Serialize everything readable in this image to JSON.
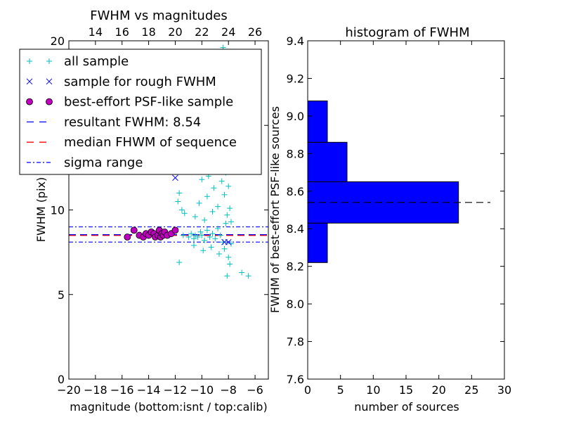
{
  "chart_data": [
    {
      "type": "scatter",
      "title": "FWHM vs magnitudes",
      "xlabel": "magnitude (bottom:isnt / top:calib)",
      "ylabel": "FWHM (pix)",
      "xlim": [
        -20,
        -5
      ],
      "ylim": [
        0,
        20
      ],
      "x_ticks": [
        "−20",
        "−18",
        "−16",
        "−14",
        "−12",
        "−10",
        "−8",
        "−6"
      ],
      "x_tick_values": [
        -20,
        -18,
        -16,
        -14,
        -12,
        -10,
        -8,
        -6
      ],
      "y_ticks": [
        "0",
        "5",
        "10",
        "15",
        "20"
      ],
      "y_tick_values": [
        0,
        5,
        10,
        15,
        20
      ],
      "top_xlim": [
        12,
        27
      ],
      "top_ticks": [
        "14",
        "16",
        "18",
        "20",
        "22",
        "24",
        "26"
      ],
      "top_tick_values": [
        14,
        16,
        18,
        20,
        22,
        24,
        26
      ],
      "legend": {
        "placement": "upper-left",
        "entries": [
          {
            "label": "all sample",
            "marker": "+",
            "color": "#00bfbf"
          },
          {
            "label": "sample for rough FWHM",
            "marker": "x",
            "color": "#0000ff"
          },
          {
            "label": "best-effort PSF-like sample",
            "marker": "o",
            "color": "#bf00bf"
          },
          {
            "label": "resultant FWHM: 8.54",
            "linestyle": "dashed",
            "color": "#0000ff"
          },
          {
            "label": "median FHWM of sequence",
            "linestyle": "dashed",
            "color": "#ff0000"
          },
          {
            "label": "sigma range",
            "linestyle": "dashdot",
            "color": "#0000ff"
          }
        ]
      },
      "lines": {
        "resultant_fwhm": 8.54,
        "median_fwhm": 8.5,
        "sigma_range": [
          8.1,
          9.0
        ]
      },
      "series": [
        {
          "name": "all sample",
          "marker": "+",
          "color": "#00bfbf",
          "points": [
            [
              -11.4,
              8.5
            ],
            [
              -11.0,
              8.4
            ],
            [
              -10.8,
              8.6
            ],
            [
              -10.6,
              8.3
            ],
            [
              -10.5,
              8.5
            ],
            [
              -10.3,
              8.4
            ],
            [
              -10.1,
              8.7
            ],
            [
              -10.0,
              8.5
            ],
            [
              -9.8,
              8.2
            ],
            [
              -9.6,
              8.8
            ],
            [
              -9.4,
              8.4
            ],
            [
              -9.2,
              8.6
            ],
            [
              -9.0,
              8.3
            ],
            [
              -8.8,
              8.9
            ],
            [
              -8.6,
              8.5
            ],
            [
              -8.4,
              8.1
            ],
            [
              -8.2,
              9.2
            ],
            [
              -11.8,
              10.5
            ],
            [
              -11.7,
              11.0
            ],
            [
              -11.5,
              10.0
            ],
            [
              -11.3,
              9.8
            ],
            [
              -11.0,
              12.5
            ],
            [
              -10.8,
              13.5
            ],
            [
              -10.5,
              9.6
            ],
            [
              -10.2,
              10.4
            ],
            [
              -10.0,
              11.8
            ],
            [
              -9.9,
              13.0
            ],
            [
              -9.8,
              9.4
            ],
            [
              -9.6,
              10.8
            ],
            [
              -9.5,
              12.0
            ],
            [
              -9.4,
              14.5
            ],
            [
              -9.2,
              9.9
            ],
            [
              -9.1,
              11.3
            ],
            [
              -9.0,
              16.0
            ],
            [
              -8.9,
              13.8
            ],
            [
              -8.8,
              10.2
            ],
            [
              -8.7,
              12.6
            ],
            [
              -8.6,
              17.5
            ],
            [
              -8.6,
              14.2
            ],
            [
              -8.5,
              11.7
            ],
            [
              -8.4,
              19.6
            ],
            [
              -8.4,
              15.5
            ],
            [
              -8.3,
              13.1
            ],
            [
              -8.3,
              10.9
            ],
            [
              -8.2,
              18.4
            ],
            [
              -8.2,
              12.2
            ],
            [
              -8.1,
              14.8
            ],
            [
              -8.1,
              9.7
            ],
            [
              -8.0,
              16.8
            ],
            [
              -8.0,
              11.4
            ],
            [
              -7.9,
              13.6
            ],
            [
              -7.9,
              10.1
            ],
            [
              -7.8,
              12.8
            ],
            [
              -7.8,
              9.3
            ],
            [
              -10.6,
              7.9
            ],
            [
              -9.9,
              7.6
            ],
            [
              -9.3,
              7.8
            ],
            [
              -8.7,
              7.4
            ],
            [
              -8.3,
              7.7
            ],
            [
              -8.0,
              7.2
            ],
            [
              -7.9,
              6.8
            ],
            [
              -8.1,
              6.1
            ],
            [
              -7.0,
              6.3
            ],
            [
              -6.5,
              6.1
            ],
            [
              -11.7,
              6.9
            ],
            [
              -12.4,
              8.5
            ],
            [
              -12.6,
              8.6
            ],
            [
              -7.8,
              8.0
            ]
          ]
        },
        {
          "name": "sample for rough FWHM",
          "marker": "x",
          "color": "#0000ff",
          "points": [
            [
              -12.0,
              11.9
            ],
            [
              -8.3,
              8.1
            ],
            [
              -8.0,
              8.1
            ]
          ]
        },
        {
          "name": "best-effort PSF-like sample",
          "marker": "o",
          "color": "#bf00bf",
          "points": [
            [
              -15.6,
              8.4
            ],
            [
              -15.1,
              8.8
            ],
            [
              -14.7,
              8.5
            ],
            [
              -14.4,
              8.4
            ],
            [
              -14.2,
              8.6
            ],
            [
              -14.0,
              8.5
            ],
            [
              -13.8,
              8.7
            ],
            [
              -13.6,
              8.6
            ],
            [
              -13.5,
              8.4
            ],
            [
              -13.3,
              8.5
            ],
            [
              -13.2,
              8.8
            ],
            [
              -13.1,
              8.4
            ],
            [
              -13.0,
              8.6
            ],
            [
              -12.9,
              8.5
            ],
            [
              -12.8,
              8.7
            ],
            [
              -12.6,
              8.5
            ],
            [
              -12.3,
              8.6
            ],
            [
              -12.0,
              8.8
            ]
          ]
        }
      ]
    },
    {
      "type": "bar",
      "orientation": "horizontal",
      "title": "histogram of FWHM",
      "xlabel": "number of sources",
      "ylabel": "FWHM of best-effort PSF-like sources",
      "xlim": [
        0,
        30
      ],
      "ylim": [
        7.6,
        9.4
      ],
      "x_ticks": [
        "0",
        "5",
        "10",
        "15",
        "20",
        "25",
        "30"
      ],
      "x_tick_values": [
        0,
        5,
        10,
        15,
        20,
        25,
        30
      ],
      "y_ticks": [
        "7.6",
        "7.8",
        "8.0",
        "8.2",
        "8.4",
        "8.6",
        "8.8",
        "9.0",
        "9.2",
        "9.4"
      ],
      "y_tick_values": [
        7.6,
        7.8,
        8.0,
        8.2,
        8.4,
        8.6,
        8.8,
        9.0,
        9.2,
        9.4
      ],
      "bins": [
        {
          "lo": 8.22,
          "hi": 8.43,
          "count": 3
        },
        {
          "lo": 8.43,
          "hi": 8.65,
          "count": 23
        },
        {
          "lo": 8.65,
          "hi": 8.86,
          "count": 6
        },
        {
          "lo": 8.86,
          "hi": 9.08,
          "count": 3
        }
      ],
      "bar_color": "#0000ff",
      "reference_line": 8.54
    }
  ]
}
